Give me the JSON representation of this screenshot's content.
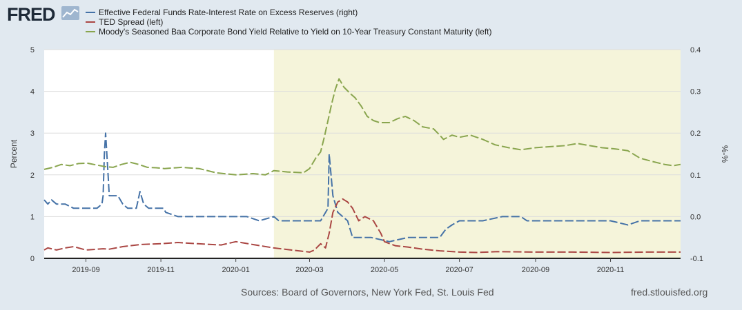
{
  "header": {
    "logo_text": "FRED",
    "legend": [
      {
        "label": "Effective Federal Funds Rate-Interest Rate on Excess Reserves (right)",
        "color": "#4572a7"
      },
      {
        "label": "TED Spread (left)",
        "color": "#aa4643"
      },
      {
        "label": "Moody's Seasoned Baa Corporate Bond Yield Relative to Yield on 10-Year Treasury Constant Maturity (left)",
        "color": "#89a54e"
      }
    ]
  },
  "footer": {
    "sources": "Sources: Board of Governors, New York Fed, St. Louis Fed",
    "site": "fred.stlouisfed.org"
  },
  "colors": {
    "background": "#e1e9f0",
    "plot_bg": "#ffffff",
    "recession_shade": "#f5f4da",
    "grid": "#dddddd"
  },
  "chart_data": {
    "type": "line",
    "title": "",
    "ylabel_left": "Percent",
    "ylabel_right": "%-%",
    "x_range": [
      "2019-07-29",
      "2020-12-28"
    ],
    "left_ylim": [
      0,
      5
    ],
    "right_ylim": [
      -0.1,
      0.4
    ],
    "left_ticks": [
      "0",
      "1",
      "2",
      "3",
      "4",
      "5"
    ],
    "right_ticks": [
      "-0.1",
      "0.0",
      "0.1",
      "0.2",
      "0.3",
      "0.4"
    ],
    "left_tick_values": [
      0,
      1,
      2,
      3,
      4,
      5
    ],
    "right_tick_values": [
      -0.1,
      0.0,
      0.1,
      0.2,
      0.3,
      0.4
    ],
    "x_ticks": [
      {
        "date": "2019-09-01",
        "label": "2019-09"
      },
      {
        "date": "2019-11-01",
        "label": "2019-11"
      },
      {
        "date": "2020-01-01",
        "label": "2020-01"
      },
      {
        "date": "2020-03-01",
        "label": "2020-03"
      },
      {
        "date": "2020-05-01",
        "label": "2020-05"
      },
      {
        "date": "2020-07-01",
        "label": "2020-07"
      },
      {
        "date": "2020-09-01",
        "label": "2020-09"
      },
      {
        "date": "2020-11-01",
        "label": "2020-11"
      }
    ],
    "recession": {
      "start": "2020-02-01",
      "end": "2020-12-28"
    },
    "series": [
      {
        "name": "Effective Federal Funds Rate-Interest Rate on Excess Reserves (right)",
        "axis": "right",
        "color": "#4572a7",
        "points": [
          [
            "2019-07-29",
            0.04
          ],
          [
            "2019-08-01",
            0.03
          ],
          [
            "2019-08-04",
            0.04
          ],
          [
            "2019-08-08",
            0.03
          ],
          [
            "2019-08-15",
            0.03
          ],
          [
            "2019-08-22",
            0.02
          ],
          [
            "2019-09-01",
            0.02
          ],
          [
            "2019-09-10",
            0.02
          ],
          [
            "2019-09-14",
            0.03
          ],
          [
            "2019-09-15",
            0.05
          ],
          [
            "2019-09-16",
            0.15
          ],
          [
            "2019-09-17",
            0.2
          ],
          [
            "2019-09-19",
            0.1
          ],
          [
            "2019-09-20",
            0.05
          ],
          [
            "2019-09-27",
            0.05
          ],
          [
            "2019-10-01",
            0.03
          ],
          [
            "2019-10-05",
            0.02
          ],
          [
            "2019-10-12",
            0.02
          ],
          [
            "2019-10-15",
            0.06
          ],
          [
            "2019-10-18",
            0.03
          ],
          [
            "2019-10-22",
            0.02
          ],
          [
            "2019-10-29",
            0.02
          ],
          [
            "2019-11-03",
            0.02
          ],
          [
            "2019-11-05",
            0.01
          ],
          [
            "2019-11-15",
            0.0
          ],
          [
            "2019-12-15",
            0.0
          ],
          [
            "2020-01-10",
            0.0
          ],
          [
            "2020-01-20",
            -0.01
          ],
          [
            "2020-02-01",
            0.0
          ],
          [
            "2020-02-05",
            -0.01
          ],
          [
            "2020-02-20",
            -0.01
          ],
          [
            "2020-03-01",
            -0.01
          ],
          [
            "2020-03-10",
            -0.01
          ],
          [
            "2020-03-16",
            0.02
          ],
          [
            "2020-03-17",
            0.15
          ],
          [
            "2020-03-20",
            0.05
          ],
          [
            "2020-03-24",
            0.01
          ],
          [
            "2020-04-01",
            -0.01
          ],
          [
            "2020-04-05",
            -0.05
          ],
          [
            "2020-04-20",
            -0.05
          ],
          [
            "2020-05-05",
            -0.06
          ],
          [
            "2020-05-20",
            -0.05
          ],
          [
            "2020-06-15",
            -0.05
          ],
          [
            "2020-06-20",
            -0.03
          ],
          [
            "2020-06-25",
            -0.02
          ],
          [
            "2020-07-01",
            -0.01
          ],
          [
            "2020-07-10",
            -0.01
          ],
          [
            "2020-07-20",
            -0.01
          ],
          [
            "2020-08-05",
            0.0
          ],
          [
            "2020-08-20",
            0.0
          ],
          [
            "2020-08-25",
            -0.01
          ],
          [
            "2020-09-10",
            -0.01
          ],
          [
            "2020-10-01",
            -0.01
          ],
          [
            "2020-11-01",
            -0.01
          ],
          [
            "2020-11-15",
            -0.02
          ],
          [
            "2020-11-25",
            -0.01
          ],
          [
            "2020-12-28",
            -0.01
          ]
        ]
      },
      {
        "name": "TED Spread (left)",
        "axis": "left",
        "color": "#aa4643",
        "points": [
          [
            "2019-07-29",
            0.2
          ],
          [
            "2019-08-01",
            0.25
          ],
          [
            "2019-08-08",
            0.2
          ],
          [
            "2019-08-15",
            0.25
          ],
          [
            "2019-08-22",
            0.28
          ],
          [
            "2019-09-01",
            0.2
          ],
          [
            "2019-09-15",
            0.23
          ],
          [
            "2019-09-20",
            0.22
          ],
          [
            "2019-10-01",
            0.28
          ],
          [
            "2019-10-15",
            0.33
          ],
          [
            "2019-11-01",
            0.35
          ],
          [
            "2019-11-15",
            0.38
          ],
          [
            "2019-12-01",
            0.35
          ],
          [
            "2019-12-20",
            0.32
          ],
          [
            "2020-01-01",
            0.4
          ],
          [
            "2020-01-15",
            0.33
          ],
          [
            "2020-02-01",
            0.25
          ],
          [
            "2020-02-15",
            0.2
          ],
          [
            "2020-03-01",
            0.15
          ],
          [
            "2020-03-05",
            0.2
          ],
          [
            "2020-03-10",
            0.35
          ],
          [
            "2020-03-14",
            0.25
          ],
          [
            "2020-03-17",
            0.6
          ],
          [
            "2020-03-20",
            1.1
          ],
          [
            "2020-03-24",
            1.35
          ],
          [
            "2020-03-28",
            1.42
          ],
          [
            "2020-04-01",
            1.35
          ],
          [
            "2020-04-05",
            1.2
          ],
          [
            "2020-04-10",
            0.9
          ],
          [
            "2020-04-15",
            1.0
          ],
          [
            "2020-04-22",
            0.9
          ],
          [
            "2020-04-28",
            0.6
          ],
          [
            "2020-05-01",
            0.4
          ],
          [
            "2020-05-10",
            0.3
          ],
          [
            "2020-05-20",
            0.27
          ],
          [
            "2020-06-01",
            0.22
          ],
          [
            "2020-06-15",
            0.18
          ],
          [
            "2020-07-01",
            0.15
          ],
          [
            "2020-07-15",
            0.14
          ],
          [
            "2020-08-01",
            0.16
          ],
          [
            "2020-09-01",
            0.15
          ],
          [
            "2020-10-01",
            0.15
          ],
          [
            "2020-11-01",
            0.14
          ],
          [
            "2020-12-01",
            0.15
          ],
          [
            "2020-12-28",
            0.15
          ]
        ]
      },
      {
        "name": "Moody's Seasoned Baa Corporate Bond Yield Relative to Yield on 10-Year Treasury Constant Maturity (left)",
        "axis": "left",
        "color": "#89a54e",
        "points": [
          [
            "2019-07-29",
            2.13
          ],
          [
            "2019-08-05",
            2.18
          ],
          [
            "2019-08-12",
            2.25
          ],
          [
            "2019-08-19",
            2.22
          ],
          [
            "2019-08-26",
            2.27
          ],
          [
            "2019-09-02",
            2.28
          ],
          [
            "2019-09-09",
            2.24
          ],
          [
            "2019-09-16",
            2.2
          ],
          [
            "2019-09-23",
            2.18
          ],
          [
            "2019-09-30",
            2.25
          ],
          [
            "2019-10-07",
            2.3
          ],
          [
            "2019-10-14",
            2.25
          ],
          [
            "2019-10-21",
            2.18
          ],
          [
            "2019-10-28",
            2.17
          ],
          [
            "2019-11-04",
            2.15
          ],
          [
            "2019-11-18",
            2.18
          ],
          [
            "2019-12-02",
            2.15
          ],
          [
            "2019-12-16",
            2.05
          ],
          [
            "2020-01-01",
            2.0
          ],
          [
            "2020-01-15",
            2.03
          ],
          [
            "2020-01-25",
            2.0
          ],
          [
            "2020-02-01",
            2.1
          ],
          [
            "2020-02-12",
            2.07
          ],
          [
            "2020-02-25",
            2.05
          ],
          [
            "2020-03-01",
            2.15
          ],
          [
            "2020-03-06",
            2.4
          ],
          [
            "2020-03-10",
            2.55
          ],
          [
            "2020-03-13",
            2.9
          ],
          [
            "2020-03-16",
            3.3
          ],
          [
            "2020-03-19",
            3.7
          ],
          [
            "2020-03-22",
            4.05
          ],
          [
            "2020-03-25",
            4.3
          ],
          [
            "2020-03-29",
            4.1
          ],
          [
            "2020-04-03",
            3.95
          ],
          [
            "2020-04-07",
            3.85
          ],
          [
            "2020-04-12",
            3.65
          ],
          [
            "2020-04-17",
            3.4
          ],
          [
            "2020-04-22",
            3.3
          ],
          [
            "2020-04-27",
            3.25
          ],
          [
            "2020-05-05",
            3.25
          ],
          [
            "2020-05-12",
            3.35
          ],
          [
            "2020-05-18",
            3.4
          ],
          [
            "2020-05-25",
            3.3
          ],
          [
            "2020-06-01",
            3.15
          ],
          [
            "2020-06-10",
            3.1
          ],
          [
            "2020-06-15",
            2.95
          ],
          [
            "2020-06-18",
            2.85
          ],
          [
            "2020-06-25",
            2.95
          ],
          [
            "2020-07-01",
            2.9
          ],
          [
            "2020-07-10",
            2.95
          ],
          [
            "2020-07-20",
            2.85
          ],
          [
            "2020-07-30",
            2.72
          ],
          [
            "2020-08-10",
            2.65
          ],
          [
            "2020-08-20",
            2.6
          ],
          [
            "2020-09-01",
            2.65
          ],
          [
            "2020-09-15",
            2.68
          ],
          [
            "2020-09-25",
            2.7
          ],
          [
            "2020-10-05",
            2.75
          ],
          [
            "2020-10-15",
            2.7
          ],
          [
            "2020-10-25",
            2.65
          ],
          [
            "2020-11-05",
            2.62
          ],
          [
            "2020-11-15",
            2.58
          ],
          [
            "2020-11-25",
            2.4
          ],
          [
            "2020-12-05",
            2.32
          ],
          [
            "2020-12-15",
            2.25
          ],
          [
            "2020-12-22",
            2.22
          ],
          [
            "2020-12-28",
            2.25
          ]
        ]
      }
    ]
  }
}
